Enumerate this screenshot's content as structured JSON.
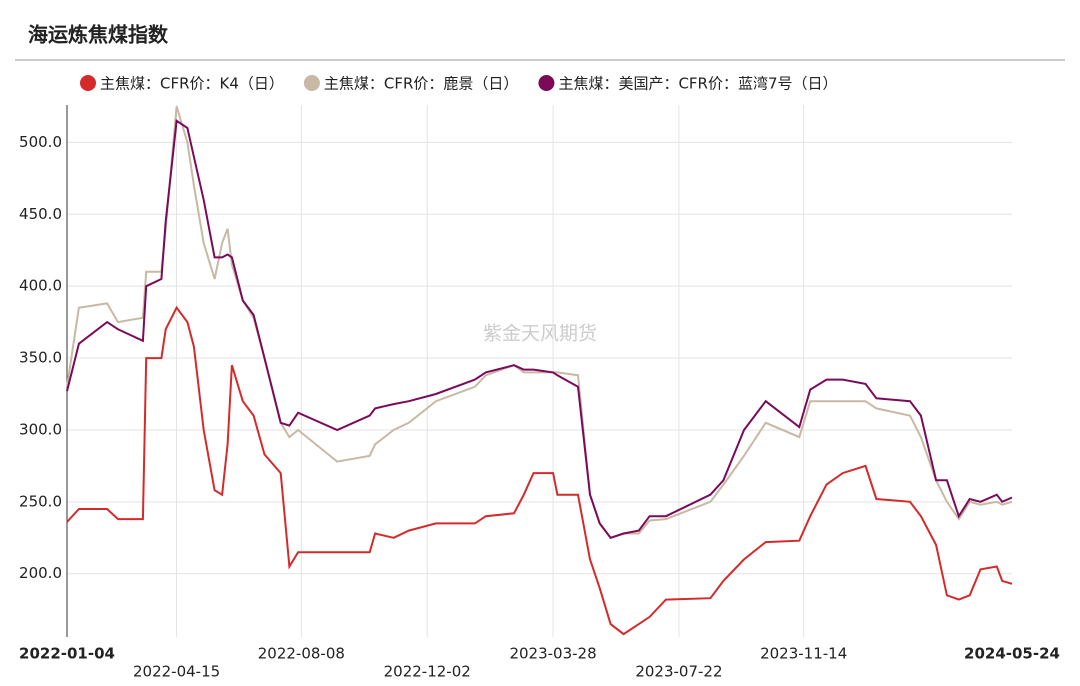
{
  "chart_data": {
    "type": "line",
    "title": "海运炼焦煤指数",
    "watermark": "紫金天风期货",
    "x": [
      "2022-01-04",
      "2022-01-15",
      "2022-02-10",
      "2022-02-20",
      "2022-03-15",
      "2022-03-18",
      "2022-04-01",
      "2022-04-05",
      "2022-04-15",
      "2022-04-25",
      "2022-05-01",
      "2022-05-10",
      "2022-05-20",
      "2022-05-27",
      "2022-06-01",
      "2022-06-05",
      "2022-06-15",
      "2022-06-25",
      "2022-07-05",
      "2022-07-20",
      "2022-07-28",
      "2022-08-05",
      "2022-09-10",
      "2022-10-10",
      "2022-10-15",
      "2022-11-01",
      "2022-11-15",
      "2022-12-10",
      "2023-01-15",
      "2023-01-25",
      "2023-02-20",
      "2023-03-01",
      "2023-03-10",
      "2023-03-28",
      "2023-04-01",
      "2023-04-20",
      "2023-05-01",
      "2023-05-10",
      "2023-05-20",
      "2023-06-01",
      "2023-06-15",
      "2023-06-25",
      "2023-07-10",
      "2023-08-20",
      "2023-09-01",
      "2023-09-20",
      "2023-10-10",
      "2023-11-10",
      "2023-11-20",
      "2023-12-05",
      "2023-12-20",
      "2024-01-10",
      "2024-01-20",
      "2024-02-20",
      "2024-03-01",
      "2024-03-15",
      "2024-03-25",
      "2024-04-05",
      "2024-04-15",
      "2024-04-25",
      "2024-05-10",
      "2024-05-15",
      "2024-05-24"
    ],
    "series": [
      {
        "name": "主焦煤：CFR价：K4（日）",
        "color": "#d42a2a",
        "values": [
          236,
          245,
          245,
          238,
          238,
          350,
          350,
          370,
          385,
          375,
          358,
          300,
          258,
          255,
          290,
          345,
          320,
          310,
          283,
          270,
          205,
          215,
          215,
          215,
          228,
          225,
          230,
          235,
          235,
          240,
          242,
          255,
          270,
          270,
          255,
          255,
          210,
          190,
          165,
          158,
          165,
          170,
          182,
          183,
          195,
          210,
          222,
          223,
          240,
          262,
          270,
          275,
          252,
          250,
          240,
          220,
          185,
          182,
          185,
          203,
          205,
          195,
          193
        ]
      },
      {
        "name": "主焦煤：CFR价：鹿景（日）",
        "color": "#c8b8a4",
        "values": [
          330,
          385,
          388,
          375,
          378,
          410,
          410,
          440,
          525,
          500,
          470,
          430,
          405,
          430,
          440,
          415,
          390,
          378,
          350,
          305,
          295,
          300,
          278,
          282,
          290,
          300,
          305,
          320,
          330,
          338,
          345,
          340,
          340,
          340,
          340,
          338,
          255,
          235,
          225,
          228,
          228,
          237,
          238,
          250,
          262,
          282,
          305,
          295,
          320,
          320,
          320,
          320,
          315,
          310,
          295,
          265,
          250,
          238,
          250,
          248,
          250,
          248,
          250
        ]
      },
      {
        "name": "主焦煤：美国产：CFR价：蓝湾7号（日）",
        "color": "#7a0a5a",
        "values": [
          327,
          360,
          375,
          370,
          362,
          400,
          405,
          445,
          515,
          510,
          490,
          460,
          420,
          420,
          422,
          420,
          390,
          380,
          350,
          305,
          303,
          312,
          300,
          310,
          315,
          318,
          320,
          325,
          335,
          340,
          345,
          342,
          342,
          340,
          338,
          330,
          255,
          235,
          225,
          228,
          230,
          240,
          240,
          255,
          265,
          300,
          320,
          302,
          328,
          335,
          335,
          332,
          322,
          320,
          310,
          265,
          265,
          240,
          252,
          250,
          255,
          250,
          253
        ]
      }
    ],
    "xticks": [
      "2022-01-04",
      "2022-04-15",
      "2022-08-08",
      "2022-12-02",
      "2023-03-28",
      "2023-07-22",
      "2023-11-14",
      "2024-05-24"
    ],
    "ylim": [
      156,
      526
    ],
    "yticks": [
      {
        "value": 200,
        "label": "200.0"
      },
      {
        "value": 250,
        "label": "250.0"
      },
      {
        "value": 300,
        "label": "300.0"
      },
      {
        "value": 350,
        "label": "350.0"
      },
      {
        "value": 400,
        "label": "400.0"
      },
      {
        "value": 450,
        "label": "450.0"
      },
      {
        "value": 500,
        "label": "500.0"
      }
    ],
    "grid": true
  }
}
